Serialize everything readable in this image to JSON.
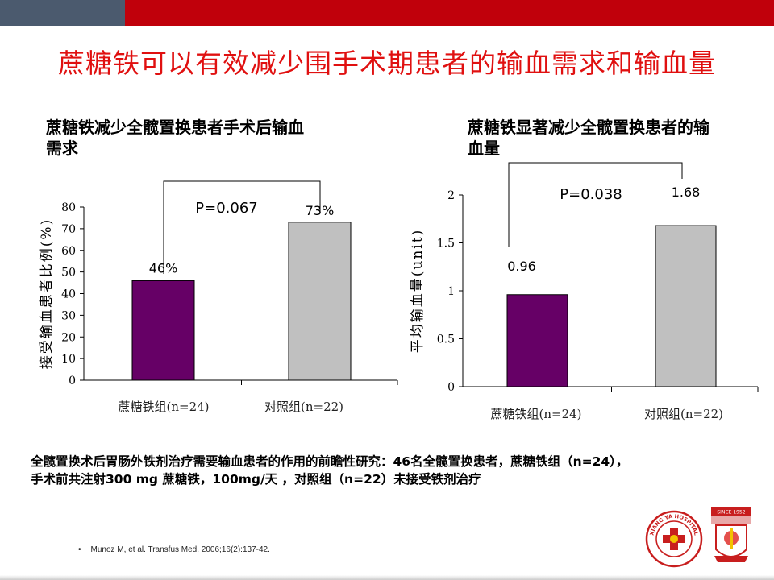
{
  "slide": {
    "title": "蔗糖铁可以有效减少围手术期患者的输血需求和输血量",
    "footnote_line1": "全髋置换术后胃肠外铁剂治疗需要输血患者的作用的前瞻性研究：46名全髋置换患者，蔗糖铁组（n=24），",
    "footnote_line2": "手术前共注射300 mg 蔗糖铁，100mg/天 ，对照组（n=22）未接受铁剂治疗",
    "reference_bullet": "•",
    "reference": "Munoz M, et al. Transfus Med. 2006;16(2):137-42.",
    "logo_left_text": "XIANG YA HOSPITAL",
    "logo_right_text": "SINCE 1952",
    "colors": {
      "top_bar_left": "#4b5a6e",
      "top_bar_right": "#c0000b",
      "title": "#e01010",
      "bar_treatment": "#660066",
      "bar_control": "#c0c0c0"
    }
  },
  "chart_data": [
    {
      "type": "bar",
      "title_line1": "蔗糖铁减少全髋置换患者手术后输血",
      "title_line2": "需求",
      "categories": [
        "蔗糖铁组(n=24)",
        "对照组(n=22)"
      ],
      "values": [
        46,
        73
      ],
      "value_labels": [
        "46%",
        "73%"
      ],
      "bar_colors": [
        "#660066",
        "#c0c0c0"
      ],
      "ylabel": "接受输血患者比例(%)",
      "ylim": [
        0,
        80
      ],
      "yticks": [
        0,
        10,
        20,
        30,
        40,
        50,
        60,
        70,
        80
      ],
      "ytick_labels": [
        "0",
        "10",
        "20",
        "30",
        "40",
        "50",
        "60",
        "70",
        "80"
      ],
      "annotation": "P=0.067",
      "grid": false
    },
    {
      "type": "bar",
      "title_line1": "蔗糖铁显著减少全髋置换患者的输",
      "title_line2": "血量",
      "categories": [
        "蔗糖铁组(n=24)",
        "对照组(n=22)"
      ],
      "values": [
        0.96,
        1.68
      ],
      "value_labels": [
        "0.96",
        "1.68"
      ],
      "bar_colors": [
        "#660066",
        "#c0c0c0"
      ],
      "ylabel": "平均输血量(unit)",
      "ylim": [
        0,
        2
      ],
      "yticks": [
        0,
        0.5,
        1,
        1.5,
        2
      ],
      "ytick_labels": [
        "0",
        "0.5",
        "1",
        "1.5",
        "2"
      ],
      "annotation": "P=0.038",
      "grid": false
    }
  ]
}
